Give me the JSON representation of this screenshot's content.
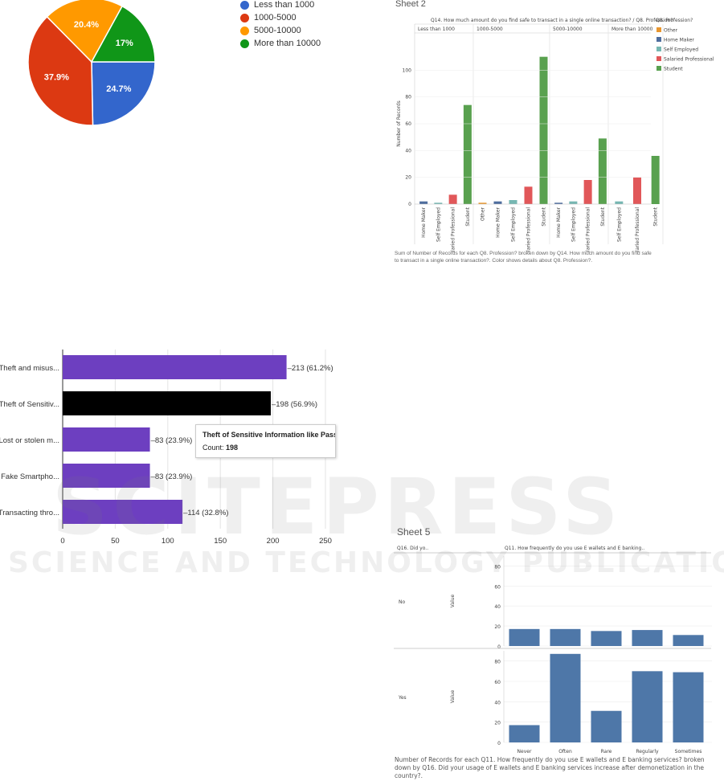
{
  "chart_data": [
    {
      "type": "pie",
      "categories": [
        "Less than 1000",
        "1000-5000",
        "5000-10000",
        "More than 10000"
      ],
      "values": [
        24.7,
        37.9,
        20.4,
        17
      ],
      "labels": [
        "24.7%",
        "37.9%",
        "20.4%",
        "17%"
      ],
      "colors": [
        "#3366cc",
        "#dc3912",
        "#ff9900",
        "#109618"
      ],
      "legend_position": "right"
    },
    {
      "type": "bar",
      "sheet_title": "Sheet 2",
      "title": "Q14. How much amount do you find safe to transact in a single online transaction? / Q8. Profession?",
      "legend_title": "Q8. Profession?",
      "legend": [
        {
          "name": "Other",
          "color": "#e8962f"
        },
        {
          "name": "Home Maker",
          "color": "#4e6d9e"
        },
        {
          "name": "Self Employed",
          "color": "#76b7b2"
        },
        {
          "name": "Salaried Professional",
          "color": "#e15759"
        },
        {
          "name": "Student",
          "color": "#59a14f"
        }
      ],
      "ylabel": "Number of Records",
      "ylim": [
        0,
        120
      ],
      "yticks": [
        0,
        20,
        40,
        60,
        80,
        100
      ],
      "groups": [
        {
          "name": "Less than 1000",
          "categories": [
            "Home Maker",
            "Self Employed",
            "Salaried Professional",
            "Student"
          ],
          "values": [
            2,
            1,
            7,
            74
          ]
        },
        {
          "name": "1000-5000",
          "categories": [
            "Other",
            "Home Maker",
            "Self Employed",
            "Salaried Professional",
            "Student"
          ],
          "values": [
            1,
            2,
            3,
            13,
            110
          ]
        },
        {
          "name": "5000-10000",
          "categories": [
            "Home Maker",
            "Self Employed",
            "Salaried Professional",
            "Student"
          ],
          "values": [
            1,
            2,
            18,
            49
          ]
        },
        {
          "name": "More than 10000",
          "categories": [
            "Self Employed",
            "Salaried Professional",
            "Student"
          ],
          "values": [
            2,
            20,
            36
          ]
        }
      ],
      "caption": "Sum of Number of Records for each Q8. Profession? broken down by Q14. How much amount do you find safe to transact in a single online transaction?. Color shows details about Q8. Profession?."
    },
    {
      "type": "bar",
      "orientation": "horizontal",
      "categories": [
        "Theft and misus...",
        "Theft of Sensitiv...",
        "Lost or stolen m...",
        "Fake Smartpho...",
        "Transacting thro..."
      ],
      "values": [
        213,
        198,
        83,
        83,
        114
      ],
      "data_labels": [
        "213 (61.2%)",
        "198 (56.9%)",
        "83 (23.9%)",
        "83 (23.9%)",
        "114 (32.8%)"
      ],
      "highlighted_index": 1,
      "xlim": [
        0,
        250
      ],
      "xticks": [
        0,
        50,
        100,
        150,
        200,
        250
      ],
      "tooltip": {
        "title": "Theft of Sensitive Information like Passwords a",
        "count_label": "Count:",
        "count_value": "198"
      }
    },
    {
      "type": "bar",
      "sheet_title": "Sheet 5",
      "row_header": "Q16. Did yo..",
      "column_header": "Q11. How frequently do you use E wallets and E banking..",
      "ylabel": "Value",
      "categories": [
        "Never",
        "Often",
        "Rare",
        "Regularly",
        "Sometimes"
      ],
      "ylim": [
        0,
        90
      ],
      "yticks": [
        0,
        20,
        40,
        60,
        80
      ],
      "series": [
        {
          "name": "No",
          "values": [
            17,
            17,
            15,
            16,
            11
          ]
        },
        {
          "name": "Yes",
          "values": [
            17,
            87,
            31,
            70,
            69
          ]
        }
      ],
      "caption": "Number of Records for each Q11. How frequently do you use E wallets and E banking services? broken down by Q16. Did your usage of E wallets and E banking services increase after demonetization in the country?."
    }
  ],
  "watermark": {
    "line1": "SCITEPRESS",
    "line2": "SCIENCE AND TECHNOLOGY PUBLICATIONS"
  }
}
